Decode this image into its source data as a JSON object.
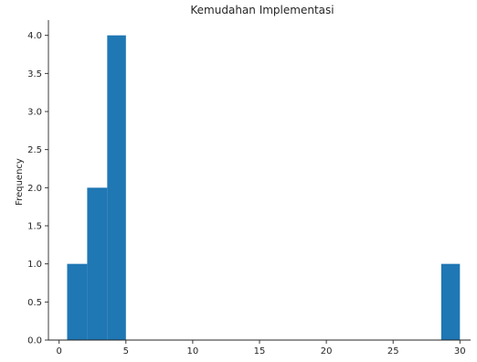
{
  "chart_data": {
    "type": "bar",
    "title": "Kemudahan Implementasi",
    "xlabel": "",
    "ylabel": "Frequency",
    "bar_color": "#1f77b4",
    "xlim": [
      -0.8,
      30.8
    ],
    "ylim": [
      0,
      4.2
    ],
    "xticks": [
      0,
      5,
      10,
      15,
      20,
      25,
      30
    ],
    "xtick_labels": [
      "0",
      "5",
      "10",
      "15",
      "20",
      "25",
      "30"
    ],
    "yticks": [
      0.0,
      0.5,
      1.0,
      1.5,
      2.0,
      2.5,
      3.0,
      3.5,
      4.0
    ],
    "ytick_labels": [
      "0.0",
      "0.5",
      "1.0",
      "1.5",
      "2.0",
      "2.5",
      "3.0",
      "3.5",
      "4.0"
    ],
    "bins": [
      {
        "x0": 0.6,
        "x1": 2.1,
        "count": 1
      },
      {
        "x0": 2.1,
        "x1": 3.6,
        "count": 2
      },
      {
        "x0": 3.6,
        "x1": 5.0,
        "count": 4
      },
      {
        "x0": 28.6,
        "x1": 30.0,
        "count": 1
      }
    ],
    "grid": false,
    "spines": [
      "left",
      "bottom"
    ]
  }
}
